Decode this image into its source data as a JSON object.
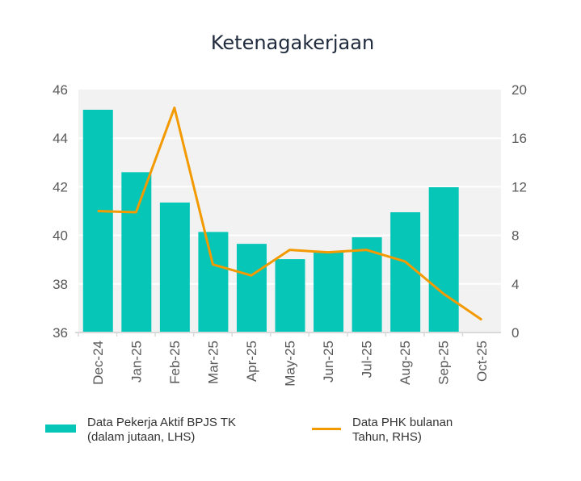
{
  "chart_data": {
    "type": "bar+line",
    "title": "Ketenagakerjaan",
    "categories": [
      "Dec-24",
      "Jan-25",
      "Feb-25",
      "Mar-25",
      "Apr-25",
      "May-25",
      "Jun-25",
      "Jul-25",
      "Aug-25",
      "Sep-25",
      "Oct-25"
    ],
    "series": [
      {
        "name": "Data Pekerja Aktif BPJS TK (dalam jutaan, LHS)",
        "type": "bar",
        "axis": "left",
        "color": "#06c6b8",
        "values": [
          45.17,
          42.6,
          41.35,
          40.14,
          39.65,
          39.02,
          39.33,
          39.92,
          40.95,
          41.98,
          null
        ]
      },
      {
        "name": "Data PHK bulanan Tahun, RHS)",
        "type": "line",
        "axis": "right",
        "color": "#f29a00",
        "values": [
          10.0,
          9.9,
          18.5,
          5.6,
          4.7,
          6.8,
          6.6,
          6.8,
          5.85,
          3.2,
          1.05
        ]
      }
    ],
    "y_left": {
      "range": [
        36,
        46
      ],
      "ticks": [
        "36",
        "38",
        "40",
        "42",
        "44",
        "46"
      ]
    },
    "y_right": {
      "range": [
        0,
        20
      ],
      "ticks": [
        "0",
        "4",
        "8",
        "12",
        "16",
        "20"
      ]
    },
    "grid": true,
    "legend": {
      "placement": "bottom",
      "bar_label_line1": "Data Pekerja Aktif BPJS TK",
      "bar_label_line2": "(dalam jutaan, LHS)",
      "line_label_line1": "Data PHK bulanan",
      "line_label_line2": "Tahun, RHS)"
    }
  }
}
